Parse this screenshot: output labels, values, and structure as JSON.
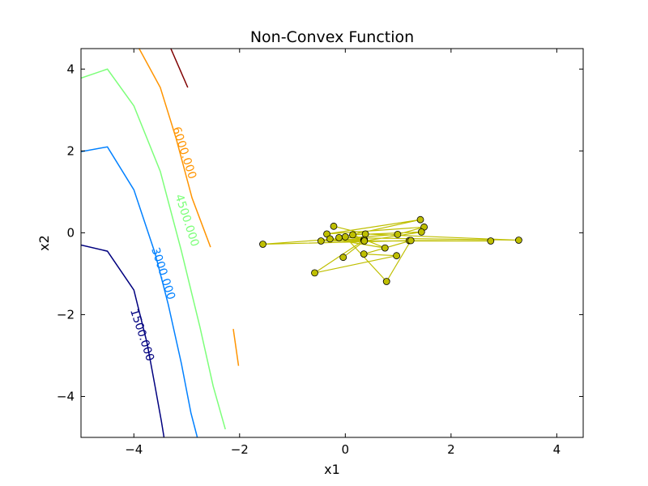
{
  "chart_data": {
    "type": "contour+line",
    "title": "Non-Convex Function",
    "xlabel": "x1",
    "ylabel": "x2",
    "xlim": [
      -5,
      4.5
    ],
    "ylim": [
      -5,
      4.5
    ],
    "grid": false,
    "xticks": [
      -4,
      -2,
      0,
      2,
      4
    ],
    "yticks": [
      -4,
      -2,
      0,
      2,
      4
    ],
    "xtick_labels": [
      "−4",
      "−2",
      "0",
      "2",
      "4"
    ],
    "ytick_labels": [
      "−4",
      "−2",
      "0",
      "2",
      "4"
    ],
    "contours": [
      {
        "level": 1500,
        "label": "1500.000",
        "color": "#00007f",
        "points": [
          [
            -5.0,
            -0.3
          ],
          [
            -4.5,
            -0.45
          ],
          [
            -4.0,
            -1.4
          ],
          [
            -3.75,
            -2.7
          ],
          [
            -3.6,
            -3.75
          ],
          [
            -3.48,
            -4.6
          ],
          [
            -3.43,
            -5.0
          ]
        ],
        "label_pos": [
          -3.85,
          -2.5
        ],
        "label_angle": 72
      },
      {
        "level": 3000,
        "label": "3000.000",
        "color": "#0080ff",
        "points": [
          [
            -5.0,
            1.98
          ],
          [
            -4.5,
            2.1
          ],
          [
            -4.0,
            1.05
          ],
          [
            -3.6,
            -0.5
          ],
          [
            -3.35,
            -1.75
          ],
          [
            -3.1,
            -3.2
          ],
          [
            -2.92,
            -4.4
          ],
          [
            -2.8,
            -5.0
          ]
        ],
        "label_pos": [
          -3.45,
          -1.0
        ],
        "label_angle": 72
      },
      {
        "level": 4500,
        "label": "4500.000",
        "color": "#7dff7a",
        "points": [
          [
            -5.0,
            3.78
          ],
          [
            -4.5,
            4.0
          ],
          [
            -4.0,
            3.1
          ],
          [
            -3.5,
            1.5
          ],
          [
            -3.1,
            -0.45
          ],
          [
            -2.75,
            -2.3
          ],
          [
            -2.5,
            -3.75
          ],
          [
            -2.27,
            -4.8
          ]
        ],
        "label_pos": [
          -3.0,
          0.3
        ],
        "label_angle": 72
      },
      {
        "level": 6000,
        "label": "6000.000",
        "color": "#ff9400",
        "segments": [
          [
            [
              -3.9,
              4.5
            ],
            [
              -3.5,
              3.55
            ],
            [
              -3.2,
              2.3
            ],
            [
              -2.9,
              0.85
            ],
            [
              -2.55,
              -0.35
            ]
          ],
          [
            [
              -2.12,
              -2.35
            ],
            [
              -2.02,
              -3.25
            ]
          ]
        ],
        "label_pos": [
          -3.05,
          1.95
        ],
        "label_angle": 72
      },
      {
        "level": 7500,
        "color": "#7f0000",
        "segments": [
          [
            [
              -3.3,
              4.5
            ],
            [
              -2.98,
              3.55
            ]
          ]
        ]
      }
    ],
    "series": [
      {
        "color": "#bfbf00",
        "marker": "o",
        "x": [
          -0.22,
          0.38,
          3.28,
          -0.12,
          1.42,
          -0.35,
          1.49,
          0.99,
          -1.56,
          1.21,
          2.75,
          -0.46,
          0.35,
          -0.58,
          0.97,
          0.35,
          1.24,
          0.78,
          0.0,
          0.36,
          -0.29,
          0.75,
          0.14,
          1.44,
          0.36,
          -0.04
        ],
        "y": [
          0.16,
          -0.03,
          -0.18,
          -0.12,
          0.32,
          -0.03,
          0.14,
          -0.04,
          -0.28,
          -0.19,
          -0.2,
          -0.2,
          -0.18,
          -0.98,
          -0.56,
          -0.52,
          -0.19,
          -1.19,
          -0.1,
          -0.17,
          -0.15,
          -0.37,
          -0.05,
          0.02,
          -0.2,
          -0.6
        ]
      }
    ]
  }
}
